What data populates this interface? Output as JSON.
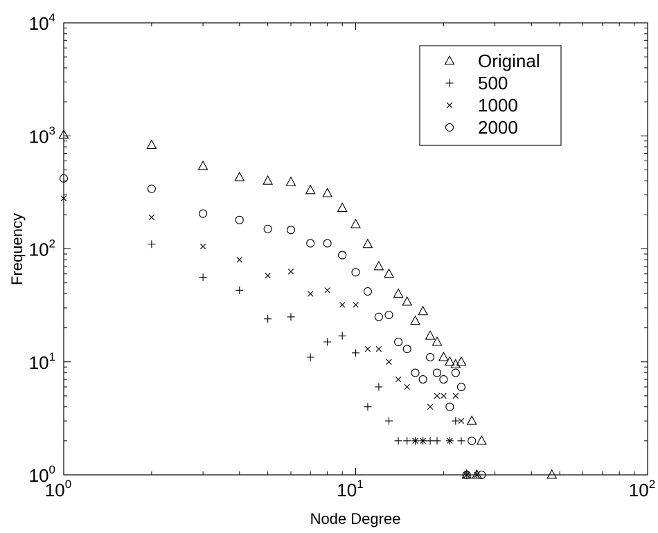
{
  "chart_data": {
    "type": "scatter",
    "title": "",
    "xlabel": "Node Degree",
    "ylabel": "Frequency",
    "xscale": "log",
    "yscale": "log",
    "xlim": [
      1,
      100
    ],
    "ylim": [
      1,
      10000
    ],
    "x_ticks": [
      {
        "base": "10",
        "exp": "0"
      },
      {
        "base": "10",
        "exp": "1"
      },
      {
        "base": "10",
        "exp": "2"
      }
    ],
    "y_ticks": [
      {
        "base": "10",
        "exp": "0"
      },
      {
        "base": "10",
        "exp": "1"
      },
      {
        "base": "10",
        "exp": "2"
      },
      {
        "base": "10",
        "exp": "3"
      },
      {
        "base": "10",
        "exp": "4"
      }
    ],
    "grid": false,
    "legend_position": "top-right",
    "series": [
      {
        "name": "Original",
        "marker": "triangle",
        "points": [
          [
            1,
            1020
          ],
          [
            2,
            830
          ],
          [
            3,
            540
          ],
          [
            4,
            430
          ],
          [
            5,
            400
          ],
          [
            6,
            390
          ],
          [
            7,
            330
          ],
          [
            8,
            310
          ],
          [
            9,
            230
          ],
          [
            10,
            165
          ],
          [
            11,
            110
          ],
          [
            12,
            70
          ],
          [
            13,
            60
          ],
          [
            14,
            40
          ],
          [
            15,
            34
          ],
          [
            16,
            23
          ],
          [
            17,
            28
          ],
          [
            18,
            17
          ],
          [
            19,
            15
          ],
          [
            20,
            11
          ],
          [
            21,
            10
          ],
          [
            22,
            9.5
          ],
          [
            23,
            10
          ],
          [
            24,
            1
          ],
          [
            25,
            3
          ],
          [
            26,
            1
          ],
          [
            27,
            2
          ],
          [
            47,
            1
          ]
        ]
      },
      {
        "name": "500",
        "marker": "plus",
        "points": [
          [
            2,
            110
          ],
          [
            3,
            56
          ],
          [
            4,
            43
          ],
          [
            5,
            24
          ],
          [
            6,
            25
          ],
          [
            7,
            11
          ],
          [
            8,
            15
          ],
          [
            9,
            17
          ],
          [
            10,
            12
          ],
          [
            11,
            4
          ],
          [
            12,
            6
          ],
          [
            13,
            3
          ],
          [
            14,
            2
          ],
          [
            15,
            2
          ],
          [
            16,
            2
          ],
          [
            17,
            2
          ],
          [
            18,
            2
          ],
          [
            19,
            2
          ],
          [
            21,
            2
          ],
          [
            22,
            3
          ],
          [
            23,
            2
          ],
          [
            24,
            1
          ],
          [
            26,
            1
          ]
        ]
      },
      {
        "name": "1000",
        "marker": "cross",
        "points": [
          [
            1,
            280
          ],
          [
            2,
            190
          ],
          [
            3,
            105
          ],
          [
            4,
            80
          ],
          [
            5,
            58
          ],
          [
            6,
            63
          ],
          [
            7,
            40
          ],
          [
            8,
            43
          ],
          [
            9,
            32
          ],
          [
            10,
            32
          ],
          [
            11,
            13
          ],
          [
            12,
            13
          ],
          [
            13,
            10
          ],
          [
            14,
            7
          ],
          [
            15,
            6
          ],
          [
            16,
            2
          ],
          [
            17,
            2
          ],
          [
            18,
            4
          ],
          [
            19,
            5
          ],
          [
            20,
            5
          ],
          [
            21,
            2
          ],
          [
            22,
            5
          ],
          [
            23,
            3
          ],
          [
            24,
            1
          ],
          [
            26,
            1
          ]
        ]
      },
      {
        "name": "2000",
        "marker": "circle",
        "points": [
          [
            1,
            420
          ],
          [
            2,
            340
          ],
          [
            3,
            205
          ],
          [
            4,
            180
          ],
          [
            5,
            150
          ],
          [
            6,
            147
          ],
          [
            7,
            112
          ],
          [
            8,
            112
          ],
          [
            9,
            88
          ],
          [
            10,
            62
          ],
          [
            11,
            42
          ],
          [
            12,
            25
          ],
          [
            13,
            26
          ],
          [
            14,
            15
          ],
          [
            15,
            13
          ],
          [
            16,
            8
          ],
          [
            17,
            7
          ],
          [
            18,
            11
          ],
          [
            19,
            8
          ],
          [
            20,
            7
          ],
          [
            21,
            4
          ],
          [
            22,
            8
          ],
          [
            23,
            6
          ],
          [
            24,
            1
          ],
          [
            25,
            2
          ],
          [
            27,
            1
          ]
        ]
      }
    ]
  }
}
